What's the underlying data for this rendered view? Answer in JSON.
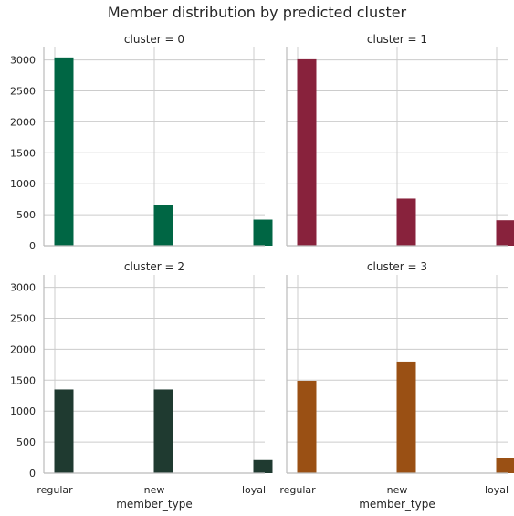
{
  "title": "Member distribution by predicted cluster",
  "colors": {
    "cluster_0": "#006644",
    "cluster_1": "#88223C",
    "cluster_2": "#1F3A30",
    "cluster_3": "#9A5014",
    "grid": "#cccccc",
    "spine": "#bbbbbb",
    "text": "#262626"
  },
  "chart_data": [
    {
      "type": "bar",
      "title": "cluster = 0",
      "categories": [
        "regular",
        "new",
        "loyal"
      ],
      "values": [
        3040,
        650,
        420
      ],
      "ylim": [
        0,
        3200
      ],
      "yticks": [
        0,
        500,
        1000,
        1500,
        2000,
        2500,
        3000
      ],
      "xlabel": "",
      "grid": true
    },
    {
      "type": "bar",
      "title": "cluster = 1",
      "categories": [
        "regular",
        "new",
        "loyal"
      ],
      "values": [
        3010,
        760,
        410
      ],
      "ylim": [
        0,
        3200
      ],
      "yticks": [
        0,
        500,
        1000,
        1500,
        2000,
        2500,
        3000
      ],
      "xlabel": "",
      "grid": true
    },
    {
      "type": "bar",
      "title": "cluster = 2",
      "categories": [
        "regular",
        "new",
        "loyal"
      ],
      "values": [
        1350,
        1350,
        210
      ],
      "ylim": [
        0,
        3200
      ],
      "yticks": [
        0,
        500,
        1000,
        1500,
        2000,
        2500,
        3000
      ],
      "xlabel": "member_type",
      "grid": true
    },
    {
      "type": "bar",
      "title": "cluster = 3",
      "categories": [
        "regular",
        "new",
        "loyal"
      ],
      "values": [
        1490,
        1800,
        240
      ],
      "ylim": [
        0,
        3200
      ],
      "yticks": [
        0,
        500,
        1000,
        1500,
        2000,
        2500,
        3000
      ],
      "xlabel": "member_type",
      "grid": true
    }
  ]
}
